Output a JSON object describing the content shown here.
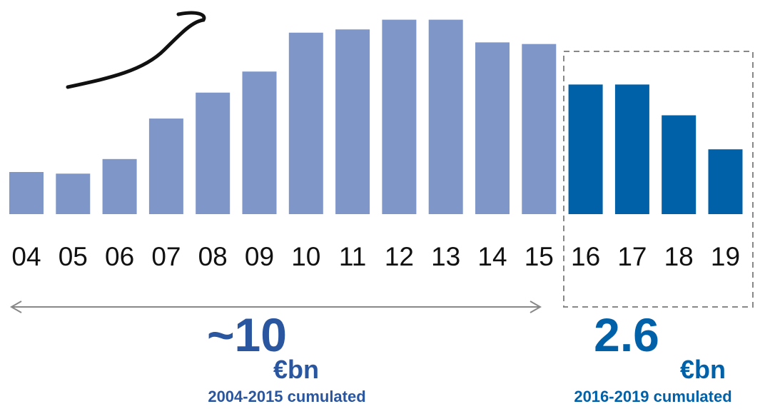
{
  "chart_data": {
    "type": "bar",
    "categories": [
      "04",
      "05",
      "06",
      "07",
      "08",
      "09",
      "10",
      "11",
      "12",
      "13",
      "14",
      "15",
      "16",
      "17",
      "18",
      "19"
    ],
    "values": [
      0.26,
      0.25,
      0.34,
      0.59,
      0.75,
      0.88,
      1.12,
      1.14,
      1.2,
      1.2,
      1.06,
      1.05,
      0.8,
      0.8,
      0.61,
      0.4
    ],
    "colors": [
      "#7f96c8",
      "#7f96c8",
      "#7f96c8",
      "#7f96c8",
      "#7f96c8",
      "#7f96c8",
      "#7f96c8",
      "#7f96c8",
      "#7f96c8",
      "#7f96c8",
      "#7f96c8",
      "#7f96c8",
      "#0060a8",
      "#0060a8",
      "#0060a8",
      "#0060a8"
    ],
    "annotations": [
      {
        "text": "~10",
        "unit": "€bn",
        "caption": "2004-2015 cumulated"
      },
      {
        "text": "2.6",
        "unit": "€bn",
        "caption": "2016-2019 cumulated"
      }
    ]
  }
}
